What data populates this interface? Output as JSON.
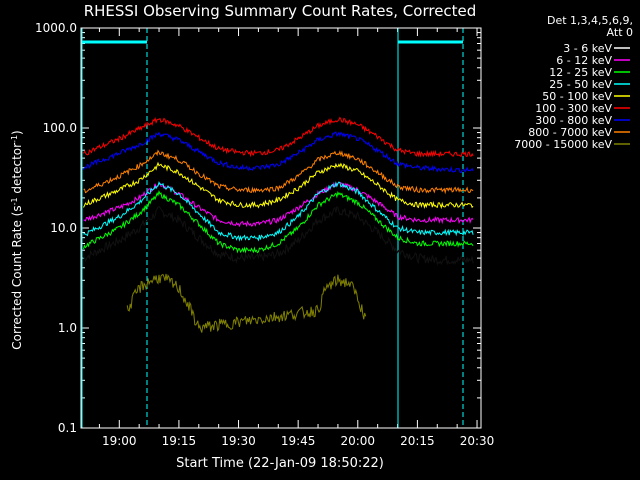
{
  "chart_data": {
    "type": "line",
    "title": "RHESSI Observing Summary Count Rates, Corrected",
    "xlabel": "Start Time (22-Jan-09 18:50:22)",
    "ylabel_main": "Corrected Count Rate (s",
    "ylabel_sup1": "-1",
    "ylabel_mid": " detector",
    "ylabel_sup2": "-1",
    "ylabel_end": ")",
    "yscale": "log",
    "ylim": [
      0.1,
      1000
    ],
    "xlim": [
      "18:50:22",
      "20:31:00"
    ],
    "x_ticks": [
      "19:00",
      "19:15",
      "19:30",
      "19:45",
      "20:00",
      "20:15",
      "20:30"
    ],
    "y_ticks": [
      "0.1",
      "1.0",
      "10.0",
      "100.0",
      "1000.0"
    ],
    "legend_header": [
      "Det 1,3,4,5,6,9,",
      "Att 0"
    ],
    "legend_position": "right",
    "series": [
      {
        "name": "3 - 6 keV",
        "color": "#000000",
        "x": [
          "18:51",
          "19:00",
          "19:05",
          "19:10",
          "19:15",
          "19:20",
          "19:25",
          "19:30",
          "19:35",
          "19:40",
          "19:45",
          "19:50",
          "19:55",
          "20:00",
          "20:05",
          "20:10",
          "20:15",
          "20:20",
          "20:25",
          "20:29"
        ],
        "y": [
          5.0,
          7.5,
          10,
          15,
          12,
          8,
          5.5,
          5.0,
          5.0,
          5.5,
          7.5,
          12,
          15,
          13,
          9,
          6,
          5.0,
          4.8,
          4.8,
          4.8
        ]
      },
      {
        "name": "6 - 12 keV",
        "color": "#ff00ff",
        "x": [
          "18:51",
          "19:00",
          "19:05",
          "19:10",
          "19:15",
          "19:20",
          "19:25",
          "19:30",
          "19:35",
          "19:40",
          "19:45",
          "19:50",
          "19:55",
          "20:00",
          "20:05",
          "20:10",
          "20:15",
          "20:20",
          "20:25",
          "20:29"
        ],
        "y": [
          12,
          16,
          20,
          28,
          22,
          16,
          12,
          11,
          11,
          12,
          16,
          22,
          28,
          24,
          18,
          13,
          12,
          12,
          12,
          12
        ]
      },
      {
        "name": "12 - 25 keV",
        "color": "#00ff00",
        "x": [
          "18:51",
          "19:00",
          "19:05",
          "19:10",
          "19:15",
          "19:20",
          "19:25",
          "19:30",
          "19:35",
          "19:40",
          "19:45",
          "19:50",
          "19:55",
          "20:00",
          "20:05",
          "20:10",
          "20:15",
          "20:20",
          "20:25",
          "20:29"
        ],
        "y": [
          6.5,
          10,
          14,
          22,
          17,
          11,
          7,
          6,
          6,
          7,
          10,
          17,
          22,
          18,
          12,
          8,
          7,
          7,
          7,
          7
        ]
      },
      {
        "name": "25 - 50 keV",
        "color": "#00ffff",
        "x": [
          "18:51",
          "19:00",
          "19:05",
          "19:10",
          "19:15",
          "19:20",
          "19:25",
          "19:30",
          "19:35",
          "19:40",
          "19:45",
          "19:50",
          "19:55",
          "20:00",
          "20:05",
          "20:10",
          "20:15",
          "20:20",
          "20:25",
          "20:29"
        ],
        "y": [
          8.5,
          13,
          18,
          28,
          22,
          14,
          9,
          8,
          8,
          9,
          13,
          22,
          28,
          23,
          15,
          10,
          9,
          9,
          9,
          9
        ]
      },
      {
        "name": "50 - 100 keV",
        "color": "#ffff00",
        "x": [
          "18:51",
          "19:00",
          "19:05",
          "19:10",
          "19:15",
          "19:20",
          "19:25",
          "19:30",
          "19:35",
          "19:40",
          "19:45",
          "19:50",
          "19:55",
          "20:00",
          "20:05",
          "20:10",
          "20:15",
          "20:20",
          "20:25",
          "20:29"
        ],
        "y": [
          17,
          24,
          30,
          43,
          36,
          26,
          19,
          17,
          17,
          19,
          25,
          36,
          43,
          37,
          27,
          19,
          17,
          17,
          17,
          17
        ]
      },
      {
        "name": "100 - 300 keV",
        "color": "#ff0000",
        "x": [
          "18:51",
          "19:00",
          "19:05",
          "19:10",
          "19:15",
          "19:20",
          "19:25",
          "19:30",
          "19:35",
          "19:40",
          "19:45",
          "19:50",
          "19:55",
          "20:00",
          "20:05",
          "20:10",
          "20:15",
          "20:20",
          "20:25",
          "20:29"
        ],
        "y": [
          55,
          78,
          98,
          123,
          105,
          80,
          62,
          57,
          56,
          60,
          78,
          105,
          123,
          108,
          82,
          60,
          55,
          55,
          55,
          55
        ]
      },
      {
        "name": "300 - 800 keV",
        "color": "#0000ff",
        "x": [
          "18:51",
          "19:00",
          "19:05",
          "19:10",
          "19:15",
          "19:20",
          "19:25",
          "19:30",
          "19:35",
          "19:40",
          "19:45",
          "19:50",
          "19:55",
          "20:00",
          "20:05",
          "20:10",
          "20:15",
          "20:20",
          "20:25",
          "20:29"
        ],
        "y": [
          40,
          56,
          68,
          88,
          76,
          58,
          45,
          40,
          40,
          43,
          56,
          76,
          88,
          78,
          60,
          44,
          40,
          39,
          38,
          38
        ]
      },
      {
        "name": "800 - 7000 keV",
        "color": "#ff8000",
        "x": [
          "18:51",
          "19:00",
          "19:05",
          "19:10",
          "19:15",
          "19:20",
          "19:25",
          "19:30",
          "19:35",
          "19:40",
          "19:45",
          "19:50",
          "19:55",
          "20:00",
          "20:05",
          "20:10",
          "20:15",
          "20:20",
          "20:25",
          "20:29"
        ],
        "y": [
          23,
          33,
          42,
          57,
          48,
          35,
          26,
          24,
          24,
          25,
          33,
          48,
          57,
          49,
          36,
          26,
          24,
          24,
          24,
          24
        ]
      },
      {
        "name": "7000 - 15000 keV",
        "color": "#808000",
        "x": [
          "19:02",
          "19:05",
          "19:08",
          "19:10",
          "19:12",
          "19:15",
          "19:18",
          "19:20",
          "19:50",
          "19:52",
          "19:55",
          "19:58",
          "20:00",
          "20:02"
        ],
        "y": [
          1.5,
          2.5,
          3.0,
          3.2,
          3.0,
          2.5,
          1.5,
          1.0,
          1.5,
          2.5,
          3.0,
          2.8,
          2.0,
          1.2
        ]
      }
    ]
  }
}
